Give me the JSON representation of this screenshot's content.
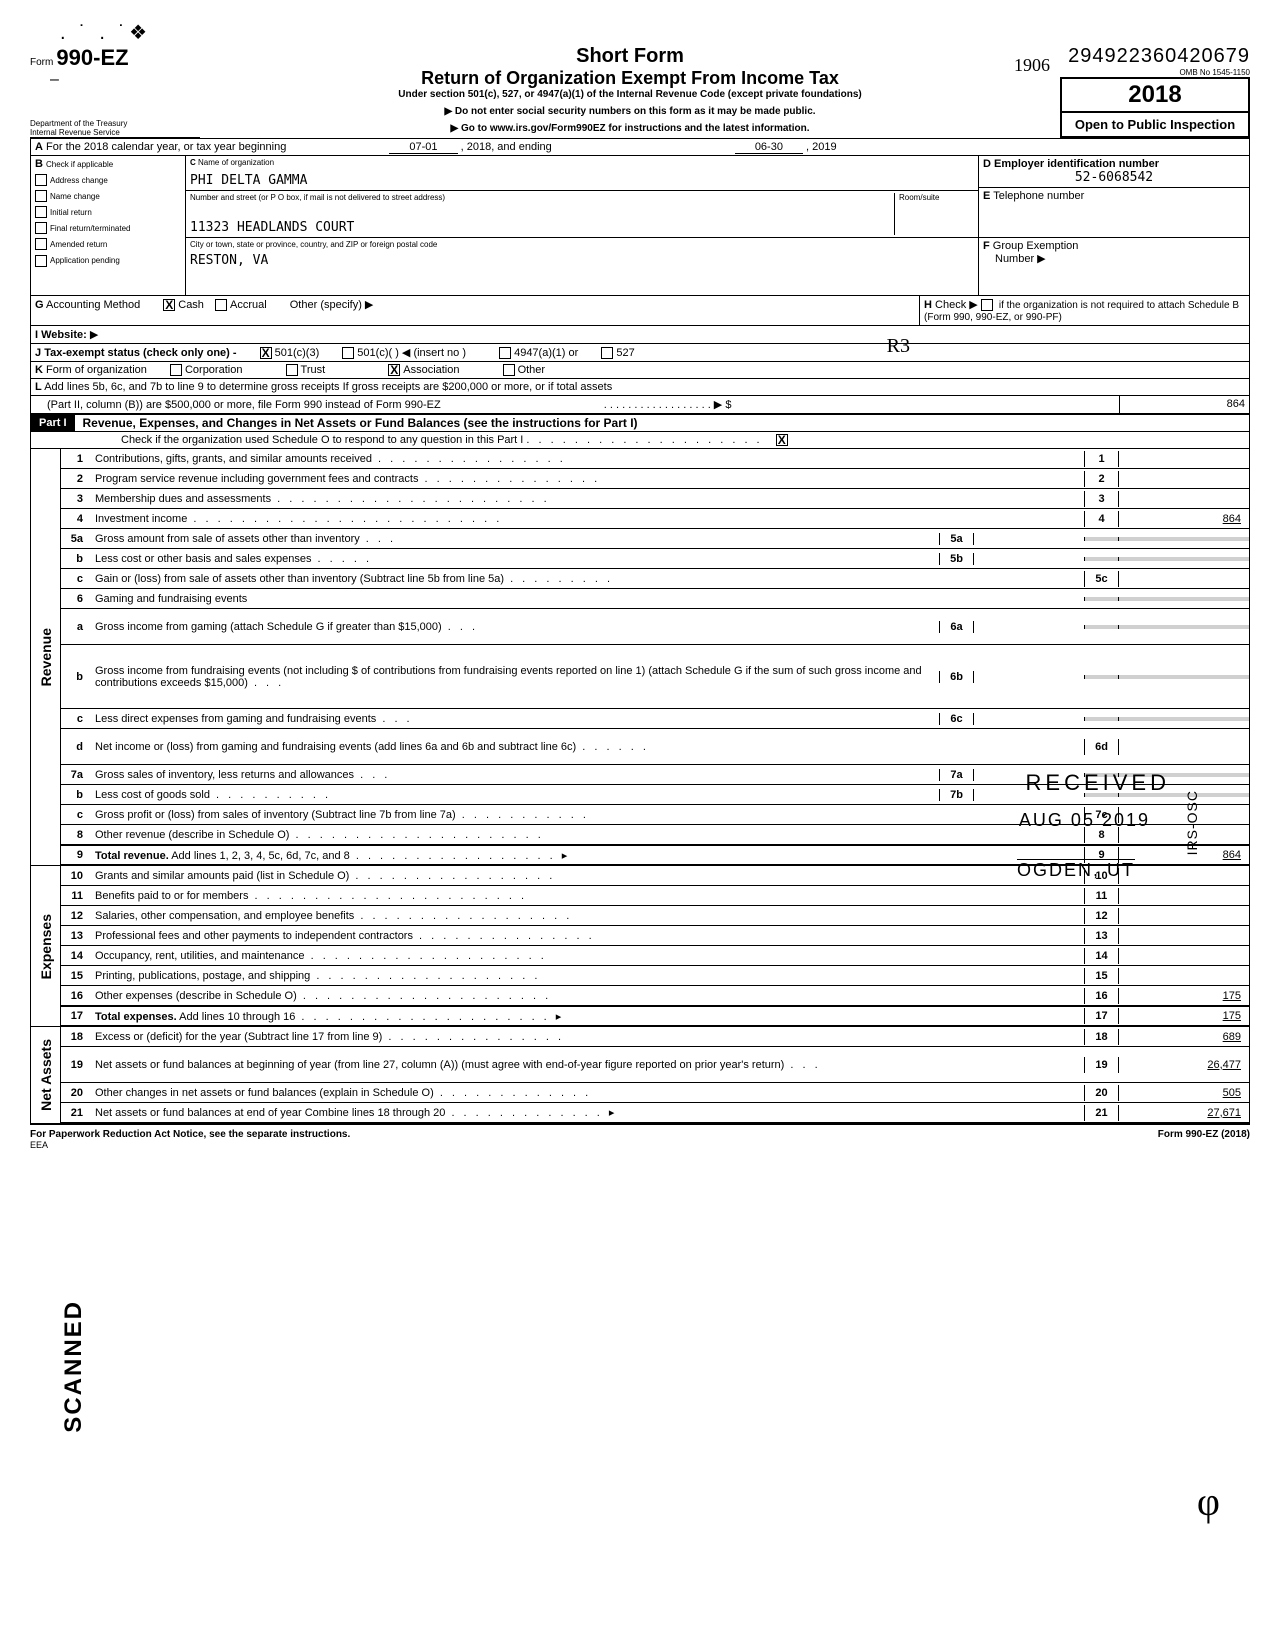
{
  "header": {
    "doc_number": "294922360420679",
    "omb": "OMB No 1545-1150",
    "form_num": "990-EZ",
    "form_word": "Form",
    "short_form": "Short Form",
    "return_title": "Return of Organization Exempt From Income Tax",
    "sub_title": "Under section 501(c), 527, or 4947(a)(1) of the Internal Revenue Code (except private foundations)",
    "warn1": "▶  Do not enter social security numbers on this form as it may be made public.",
    "warn2": "▶  Go to www.irs.gov/Form990EZ for instructions and the latest information.",
    "year": "2018",
    "open_public": "Open to Public Inspection",
    "dept": "Department of the Treasury",
    "irs": "Internal Revenue Service",
    "handwrite_1906": "1906"
  },
  "section_a": {
    "A_text": "For the 2018 calendar year, or tax year beginning",
    "A_begin": "07-01",
    "A_mid": ", 2018, and ending",
    "A_end": "06-30",
    "A_end2": ", 2019",
    "B_label": "Check if applicable",
    "B_items": [
      "Address change",
      "Name change",
      "Initial return",
      "Final return/terminated",
      "Amended return",
      "Application pending"
    ],
    "C_label": "Name of organization",
    "C_value": "PHI DELTA GAMMA",
    "C_street_label": "Number and street (or P O  box, if mail is not delivered to street address)",
    "C_street": "11323 HEADLANDS COURT",
    "C_room_label": "Room/suite",
    "C_city_label": "City or town, state or province, country, and ZIP or foreign postal code",
    "C_city": "RESTON, VA",
    "D_label": "Employer identification number",
    "D_value": "52-6068542",
    "E_label": "Telephone number",
    "F_label": "Group Exemption",
    "F_label2": "Number  ▶",
    "G_label": "Accounting Method",
    "G_cash": "Cash",
    "G_accrual": "Accrual",
    "G_other": "Other (specify) ▶",
    "H_label": "Check ▶",
    "H_text": "if the organization is not required to attach Schedule B (Form 990, 990-EZ, or 990-PF)",
    "I_label": "Website:",
    "J_label": "Tax-exempt status (check only one) -",
    "J_501c3": "501(c)(3)",
    "J_501c": "501(c)(",
    "J_insert": ") ◀ (insert no )",
    "J_4947": "4947(a)(1) or",
    "J_527": "527",
    "K_label": "Form of organization",
    "K_corp": "Corporation",
    "K_trust": "Trust",
    "K_assoc": "Association",
    "K_other": "Other",
    "L_text": "Add lines 5b, 6c, and 7b to line 9 to determine gross receipts If gross receipts are $200,000 or more, or if total assets",
    "L_text2": "(Part II, column (B)) are $500,000 or more, file Form 990 instead of Form 990-EZ",
    "L_dots": ". . . . . . . . . . . . . . . . . .  ▶ $",
    "L_amount": "864"
  },
  "part1": {
    "label": "Part I",
    "title": "Revenue, Expenses, and Changes in Net Assets or Fund Balances (see the instructions for Part I)",
    "check_o": "Check if the organization used Schedule O to respond to any question in this Part I",
    "check_o_dots": ". . . . . . . . . . . . . . . . . . . .",
    "sections": {
      "revenue": "Revenue",
      "expenses": "Expenses",
      "net_assets": "Net Assets"
    }
  },
  "lines": [
    {
      "sec": "rev",
      "num": "1",
      "text": "Contributions, gifts, grants, and similar amounts received",
      "box": "1",
      "val": ""
    },
    {
      "sec": "rev",
      "num": "2",
      "text": "Program service revenue including government fees and contracts",
      "box": "2",
      "val": ""
    },
    {
      "sec": "rev",
      "num": "3",
      "text": "Membership dues and assessments",
      "box": "3",
      "val": ""
    },
    {
      "sec": "rev",
      "num": "4",
      "text": "Investment income",
      "box": "4",
      "val": "864"
    },
    {
      "sec": "rev",
      "num": "5a",
      "text": "Gross amount from sale of assets other than inventory",
      "midbox": "5a"
    },
    {
      "sec": "rev",
      "num": "b",
      "text": "Less cost or other basis and sales expenses",
      "midbox": "5b"
    },
    {
      "sec": "rev",
      "num": "c",
      "text": "Gain or (loss) from sale of assets other than inventory (Subtract line 5b from line 5a)",
      "box": "5c",
      "val": ""
    },
    {
      "sec": "rev",
      "num": "6",
      "text": "Gaming and fundraising events",
      "nobox": true
    },
    {
      "sec": "rev",
      "num": "a",
      "text": "Gross income from gaming (attach Schedule G if greater than $15,000)",
      "midbox": "6a",
      "twoline": true
    },
    {
      "sec": "rev",
      "num": "b",
      "text": "Gross income from fundraising events (not including       $                              of contributions from fundraising events reported on line 1) (attach Schedule G if the sum of such gross income and contributions exceeds $15,000)",
      "midbox": "6b",
      "fourline": true
    },
    {
      "sec": "rev",
      "num": "c",
      "text": "Less  direct expenses from gaming and fundraising events",
      "midbox": "6c"
    },
    {
      "sec": "rev",
      "num": "d",
      "text": "Net income or (loss) from gaming and fundraising events (add lines 6a and 6b and subtract line 6c)",
      "box": "6d",
      "val": "",
      "twoline": true
    },
    {
      "sec": "rev",
      "num": "7a",
      "text": "Gross sales of inventory, less returns and allowances",
      "midbox": "7a"
    },
    {
      "sec": "rev",
      "num": "b",
      "text": "Less cost of goods sold",
      "midbox": "7b"
    },
    {
      "sec": "rev",
      "num": "c",
      "text": "Gross profit or (loss) from sales of inventory (Subtract line 7b from line 7a)",
      "box": "7c",
      "val": ""
    },
    {
      "sec": "rev",
      "num": "8",
      "text": "Other revenue (describe in Schedule O)",
      "box": "8",
      "val": ""
    },
    {
      "sec": "rev",
      "num": "9",
      "text": "Total revenue. Add lines 1, 2, 3, 4, 5c, 6d, 7c, and 8",
      "box": "9",
      "val": "864",
      "bold": true,
      "arrow": true
    },
    {
      "sec": "exp",
      "num": "10",
      "text": "Grants and similar amounts paid (list in Schedule O)",
      "box": "10",
      "val": ""
    },
    {
      "sec": "exp",
      "num": "11",
      "text": "Benefits paid to or for members",
      "box": "11",
      "val": ""
    },
    {
      "sec": "exp",
      "num": "12",
      "text": "Salaries, other compensation, and employee benefits",
      "box": "12",
      "val": ""
    },
    {
      "sec": "exp",
      "num": "13",
      "text": "Professional fees and other payments to independent contractors",
      "box": "13",
      "val": ""
    },
    {
      "sec": "exp",
      "num": "14",
      "text": "Occupancy, rent, utilities, and maintenance",
      "box": "14",
      "val": ""
    },
    {
      "sec": "exp",
      "num": "15",
      "text": "Printing, publications, postage, and shipping",
      "box": "15",
      "val": ""
    },
    {
      "sec": "exp",
      "num": "16",
      "text": "Other expenses (describe in Schedule O)",
      "box": "16",
      "val": "175"
    },
    {
      "sec": "exp",
      "num": "17",
      "text": "Total expenses. Add lines 10 through 16",
      "box": "17",
      "val": "175",
      "bold": true,
      "arrow": true
    },
    {
      "sec": "net",
      "num": "18",
      "text": "Excess or (deficit) for the year (Subtract line 17 from line 9)",
      "box": "18",
      "val": "689"
    },
    {
      "sec": "net",
      "num": "19",
      "text": "Net assets or fund balances at beginning of year (from line 27, column (A)) (must agree with end-of-year figure reported on prior year's return)",
      "box": "19",
      "val": "26,477",
      "twoline": true
    },
    {
      "sec": "net",
      "num": "20",
      "text": "Other changes in net assets or fund balances (explain in Schedule O)",
      "box": "20",
      "val": "505"
    },
    {
      "sec": "net",
      "num": "21",
      "text": "Net assets or fund balances at end of year Combine lines 18 through 20",
      "box": "21",
      "val": "27,671",
      "arrow": true
    }
  ],
  "footer": {
    "left": "For Paperwork Reduction Act Notice, see the separate instructions.",
    "eea": "EEA",
    "right": "Form 990-EZ (2018)"
  },
  "stamps": {
    "received": "RECEIVED",
    "aug": "AUG 05 2019",
    "ogden": "OGDEN, UT",
    "irs_osc": "IRS-OSC",
    "scanned": "SCANNED",
    "r3": "R3"
  }
}
